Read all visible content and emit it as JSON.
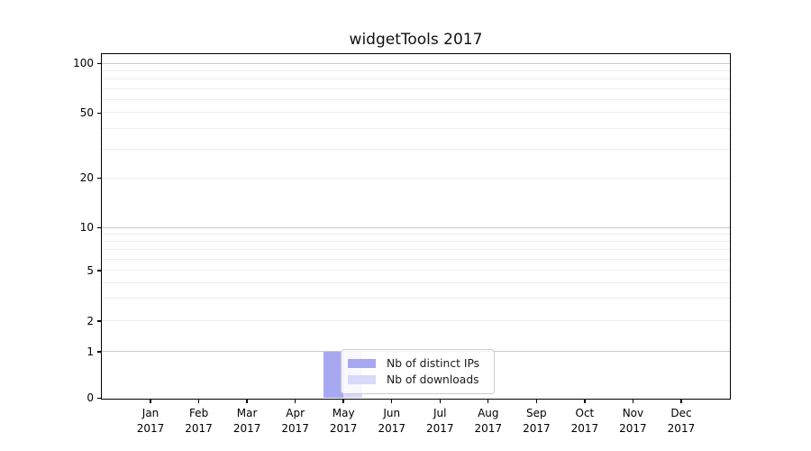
{
  "title": "widgetTools 2017",
  "chart_data": {
    "type": "bar",
    "title": "widgetTools 2017",
    "categories": [
      [
        "Jan",
        "2017"
      ],
      [
        "Feb",
        "2017"
      ],
      [
        "Mar",
        "2017"
      ],
      [
        "Apr",
        "2017"
      ],
      [
        "May",
        "2017"
      ],
      [
        "Jun",
        "2017"
      ],
      [
        "Jul",
        "2017"
      ],
      [
        "Aug",
        "2017"
      ],
      [
        "Sep",
        "2017"
      ],
      [
        "Oct",
        "2017"
      ],
      [
        "Nov",
        "2017"
      ],
      [
        "Dec",
        "2017"
      ]
    ],
    "series": [
      {
        "name": "Nb of distinct IPs",
        "color": "#a8a8f2",
        "values": [
          0,
          0,
          0,
          0,
          1,
          0,
          0,
          0,
          0,
          0,
          0,
          0
        ]
      },
      {
        "name": "Nb of downloads",
        "color": "#d9d9f8",
        "values": [
          0,
          0,
          0,
          0,
          1,
          0,
          0,
          0,
          0,
          0,
          0,
          0
        ]
      }
    ],
    "xlabel": "",
    "ylabel": "",
    "yscale": "symlog",
    "ylim": [
      0,
      113
    ],
    "yticks": [
      0,
      1,
      2,
      5,
      10,
      20,
      50,
      100
    ],
    "ytick_major_gridlines": [
      1,
      10,
      100
    ],
    "ytick_minor_gridlines": [
      2,
      3,
      4,
      5,
      6,
      7,
      8,
      9,
      20,
      30,
      40,
      50,
      60,
      70,
      80,
      90
    ],
    "grid": "on",
    "legend_position": "lower center inside plot, overlapping May bars"
  }
}
